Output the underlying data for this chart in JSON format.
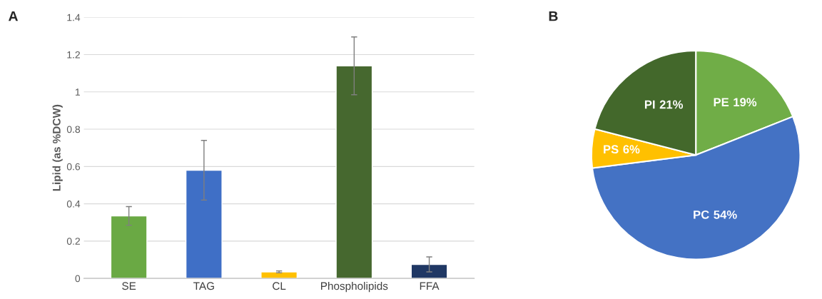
{
  "chart_data": [
    {
      "type": "bar",
      "ylabel": "Lipid (as %DCW)",
      "annotations": [
        "A"
      ],
      "categories": [
        "SE",
        "TAG",
        "CL",
        "Phospholipids",
        "FFA"
      ],
      "values": [
        0.335,
        0.58,
        0.035,
        1.14,
        0.075
      ],
      "errors": [
        0.05,
        0.16,
        0.005,
        0.155,
        0.04
      ],
      "colors": [
        "#6aa944",
        "#3f6fc6",
        "#ffc000",
        "#46682f",
        "#203864"
      ],
      "ylim": [
        0,
        1.4
      ],
      "yticks": [
        0,
        0.2,
        0.4,
        0.6,
        0.8,
        1,
        1.2,
        1.4
      ],
      "grid": "y"
    },
    {
      "type": "pie",
      "annotations": [
        "B"
      ],
      "categories": [
        "PE",
        "PC",
        "PS",
        "PI"
      ],
      "values": [
        19,
        54,
        6,
        21
      ],
      "value_labels": [
        "19%",
        "54%",
        "6%",
        "21%"
      ],
      "colors": [
        "#70ad47",
        "#4472c4",
        "#ffc000",
        "#43682b"
      ]
    }
  ]
}
